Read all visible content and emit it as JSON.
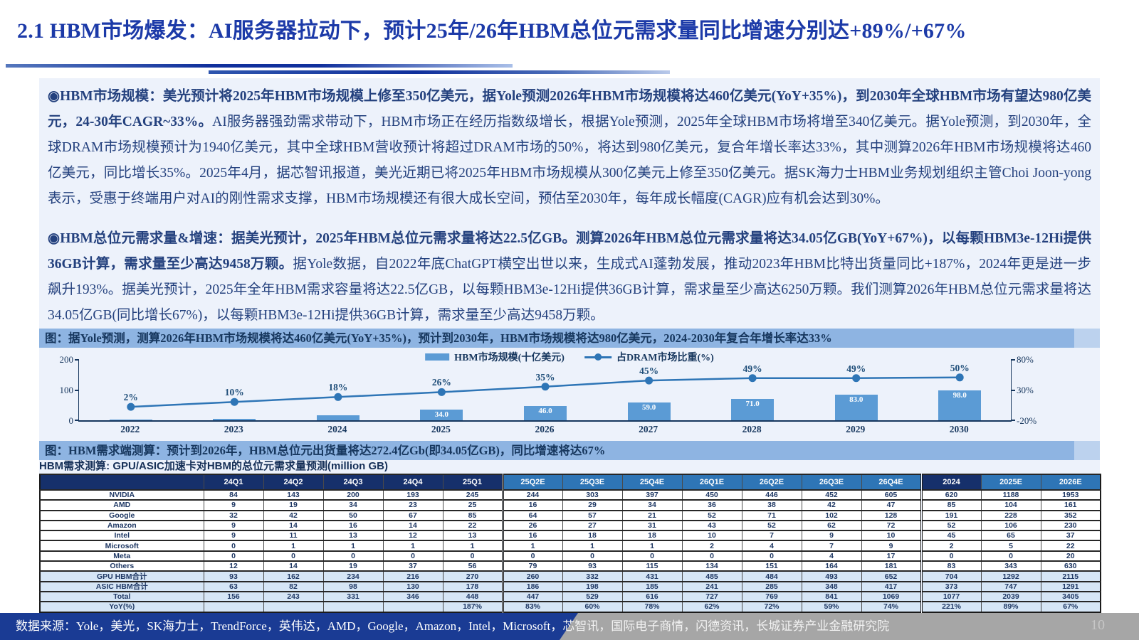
{
  "page": {
    "title": "2.1 HBM市场爆发：AI服务器拉动下，预计25年/26年HBM总位元需求量同比增速分别达+89%/+67%"
  },
  "paragraphs": [
    {
      "lead": "◉HBM市场规模：",
      "bold": "美光预计将2025年HBM市场规模上修至350亿美元，据Yole预测2026年HBM市场规模将达460亿美元(YoY+35%)，到2030年全球HBM市场有望达980亿美元，24-30年CAGR~33%。",
      "rest": "AI服务器强劲需求带动下，HBM市场正在经历指数级增长，根据Yole预测，2025年全球HBM市场将增至340亿美元。据Yole预测，到2030年，全球DRAM市场规模预计为1940亿美元，其中全球HBM营收预计将超过DRAM市场的50%，将达到980亿美元，复合年增长率达33%，其中测算2026年HBM市场规模将达460亿美元，同比增长35%。2025年4月，据芯智讯报道，美光近期已将2025年HBM市场规模从300亿美元上修至350亿美元。据SK海力士HBM业务规划组织主管Choi Joon-yong表示，受惠于终端用户对AI的刚性需求支撑，HBM市场规模还有很大成长空间，预估至2030年，每年成长幅度(CAGR)应有机会达到30%。"
    },
    {
      "lead": "◉HBM总位元需求量&增速：",
      "bold": "据美光预计，2025年HBM总位元需求量将达22.5亿GB。测算2026年HBM总位元需求量将达34.05亿GB(YoY+67%)，以每颗HBM3e-12Hi提供36GB计算，需求量至少高达9458万颗。",
      "rest": "据Yole数据，自2022年底ChatGPT横空出世以来，生成式AI蓬勃发展，推动2023年HBM比特出货量同比+187%，2024年更是进一步飙升193%。据美光预计，2025年全年HBM需求容量将达22.5亿GB，以每颗HBM3e-12Hi提供36GB计算，需求量至少高达6250万颗。我们测算2026年HBM总位元需求量将达34.05亿GB(同比增长67%)，以每颗HBM3e-12Hi提供36GB计算，需求量至少高达9458万颗。"
    }
  ],
  "chart_caption": "图：据Yole预测，测算2026年HBM市场规模将达460亿美元(YoY+35%)，预计到2030年，HBM市场规模将达980亿美元，2024-2030年复合年增长率达33%",
  "chart_data": {
    "type": "bar",
    "categories": [
      "2022",
      "2023",
      "2024",
      "2025",
      "2026",
      "2027",
      "2028",
      "2029",
      "2030"
    ],
    "series": [
      {
        "name": "HBM市场规模(十亿美元)",
        "type": "bar",
        "axis": "left",
        "color": "#5b9bd5",
        "values": [
          1,
          4,
          16,
          34,
          46,
          59,
          71,
          83,
          98
        ],
        "labels": [
          "",
          "",
          "",
          "34.0",
          "46.0",
          "59.0",
          "71.0",
          "83.0",
          "98.0"
        ]
      },
      {
        "name": "占DRAM市场比重(%)",
        "type": "line",
        "axis": "right",
        "color": "#2e75b6",
        "values": [
          2,
          10,
          18,
          26,
          35,
          45,
          49,
          49,
          50
        ],
        "labels": [
          "2%",
          "10%",
          "18%",
          "26%",
          "35%",
          "45%",
          "49%",
          "49%",
          "50%"
        ]
      }
    ],
    "left_axis": {
      "min": 0,
      "max": 200,
      "ticks": [
        "200",
        "100",
        "0"
      ]
    },
    "right_axis": {
      "min": -20,
      "max": 80,
      "ticks": [
        "80%",
        "30%",
        "-20%"
      ]
    },
    "legend_position": "top-center",
    "grid": false
  },
  "table_caption": "图：HBM需求端测算：预计到2026年，HBM总位元出货量将达272.4亿Gb(即34.05亿GB)，同比增速将达67%",
  "table": {
    "title": "HBM需求测算: GPU/ASIC加速卡对HBM的总位元需求量预测(million GB)",
    "columns": [
      "",
      "24Q1",
      "24Q2",
      "24Q3",
      "24Q4",
      "25Q1",
      "25Q2E",
      "25Q3E",
      "25Q4E",
      "26Q1E",
      "26Q2E",
      "26Q3E",
      "26Q4E",
      "2024",
      "2025E",
      "2026E"
    ],
    "header_styles": [
      "dark",
      "dark",
      "dark",
      "dark",
      "dark",
      "dark",
      "light",
      "light",
      "light",
      "light",
      "light",
      "light",
      "light",
      "dark",
      "light",
      "light"
    ],
    "rows": [
      {
        "label": "NVIDIA",
        "summary": false,
        "values": [
          "84",
          "143",
          "200",
          "193",
          "245",
          "244",
          "303",
          "397",
          "450",
          "446",
          "452",
          "605",
          "620",
          "1188",
          "1953"
        ]
      },
      {
        "label": "AMD",
        "summary": false,
        "values": [
          "9",
          "19",
          "34",
          "23",
          "25",
          "16",
          "29",
          "34",
          "36",
          "38",
          "42",
          "47",
          "85",
          "104",
          "161"
        ]
      },
      {
        "label": "Google",
        "summary": false,
        "values": [
          "32",
          "42",
          "50",
          "67",
          "85",
          "64",
          "57",
          "21",
          "52",
          "71",
          "102",
          "128",
          "191",
          "228",
          "352"
        ]
      },
      {
        "label": "Amazon",
        "summary": false,
        "values": [
          "9",
          "14",
          "16",
          "14",
          "22",
          "26",
          "27",
          "31",
          "43",
          "52",
          "62",
          "72",
          "52",
          "106",
          "230"
        ]
      },
      {
        "label": "Intel",
        "summary": false,
        "values": [
          "9",
          "11",
          "13",
          "12",
          "13",
          "16",
          "18",
          "18",
          "10",
          "7",
          "9",
          "10",
          "45",
          "65",
          "37"
        ]
      },
      {
        "label": "Microsoft",
        "summary": false,
        "values": [
          "0",
          "1",
          "1",
          "1",
          "1",
          "1",
          "1",
          "1",
          "2",
          "4",
          "7",
          "9",
          "2",
          "5",
          "22"
        ]
      },
      {
        "label": "Meta",
        "summary": false,
        "values": [
          "0",
          "0",
          "0",
          "0",
          "0",
          "0",
          "0",
          "0",
          "0",
          "0",
          "4",
          "17",
          "0",
          "0",
          "20"
        ]
      },
      {
        "label": "Others",
        "summary": false,
        "values": [
          "12",
          "14",
          "19",
          "37",
          "56",
          "79",
          "93",
          "115",
          "134",
          "151",
          "164",
          "181",
          "83",
          "343",
          "630"
        ]
      },
      {
        "label": "GPU HBM合计",
        "summary": true,
        "values": [
          "93",
          "162",
          "234",
          "216",
          "270",
          "260",
          "332",
          "431",
          "485",
          "484",
          "493",
          "652",
          "704",
          "1292",
          "2115"
        ]
      },
      {
        "label": "ASIC HBM合计",
        "summary": true,
        "values": [
          "63",
          "82",
          "98",
          "130",
          "178",
          "186",
          "198",
          "185",
          "241",
          "285",
          "348",
          "417",
          "373",
          "747",
          "1291"
        ]
      },
      {
        "label": "Total",
        "summary": true,
        "values": [
          "156",
          "243",
          "331",
          "346",
          "448",
          "447",
          "529",
          "616",
          "727",
          "769",
          "841",
          "1069",
          "1077",
          "2039",
          "3405"
        ]
      },
      {
        "label": "YoY(%)",
        "summary": true,
        "values": [
          "",
          "",
          "",
          "",
          "187%",
          "83%",
          "60%",
          "78%",
          "62%",
          "72%",
          "59%",
          "74%",
          "221%",
          "89%",
          "67%"
        ]
      }
    ]
  },
  "footer": {
    "source_blue": "数据来源：Yole，美光，SK海力士，TrendForce，英伟达，AMD，Google，Amazon，Intel，Microsoft，",
    "source_gray": "芯智讯，国际电子商情，闪德资讯，长城证券产业金融研究院",
    "page_number": "10"
  }
}
